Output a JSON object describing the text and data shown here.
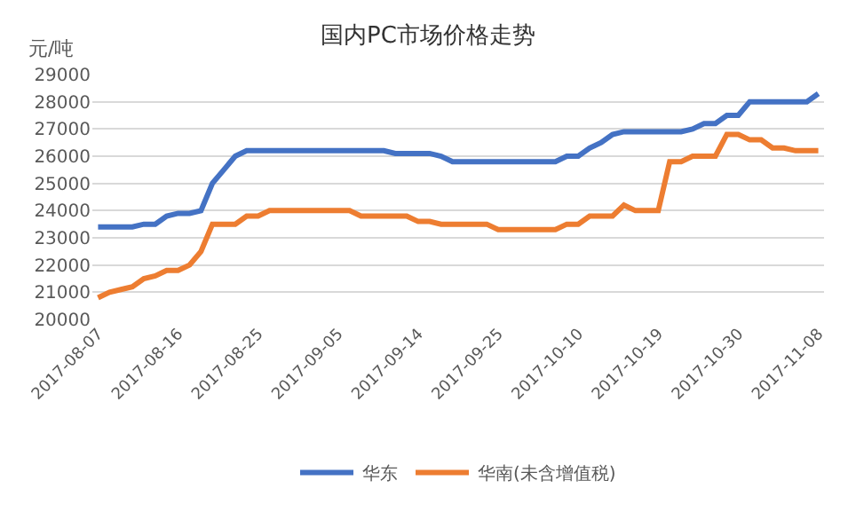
{
  "chart_data": {
    "type": "line",
    "title": "国内PC市场价格走势",
    "ylabel": "元/吨",
    "categories": [
      "2017-08-07",
      null,
      null,
      null,
      null,
      null,
      null,
      "2017-08-16",
      null,
      null,
      null,
      null,
      null,
      null,
      "2017-08-25",
      null,
      null,
      null,
      null,
      null,
      null,
      "2017-09-05",
      null,
      null,
      null,
      null,
      null,
      null,
      "2017-09-14",
      null,
      null,
      null,
      null,
      null,
      null,
      "2017-09-25",
      null,
      null,
      null,
      null,
      null,
      null,
      "2017-10-10",
      null,
      null,
      null,
      null,
      null,
      null,
      "2017-10-19",
      null,
      null,
      null,
      null,
      null,
      null,
      "2017-10-30",
      null,
      null,
      null,
      null,
      null,
      null,
      "2017-11-08"
    ],
    "series": [
      {
        "name": "华东",
        "color": "#4472c4",
        "values": [
          23400,
          23400,
          23400,
          23400,
          23500,
          23500,
          23800,
          23900,
          23900,
          24000,
          25000,
          25500,
          26000,
          26200,
          26200,
          26200,
          26200,
          26200,
          26200,
          26200,
          26200,
          26200,
          26200,
          26200,
          26200,
          26200,
          26100,
          26100,
          26100,
          26100,
          26000,
          25800,
          25800,
          25800,
          25800,
          25800,
          25800,
          25800,
          25800,
          25800,
          25800,
          26000,
          26000,
          26300,
          26500,
          26800,
          26900,
          26900,
          26900,
          26900,
          26900,
          26900,
          27000,
          27200,
          27200,
          27500,
          27500,
          28000,
          28000,
          28000,
          28000,
          28000,
          28000,
          28300
        ]
      },
      {
        "name": "华南(未含增值税)",
        "color": "#ed7d31",
        "values": [
          20800,
          21000,
          21100,
          21200,
          21500,
          21600,
          21800,
          21800,
          22000,
          22500,
          23500,
          23500,
          23500,
          23800,
          23800,
          24000,
          24000,
          24000,
          24000,
          24000,
          24000,
          24000,
          24000,
          23800,
          23800,
          23800,
          23800,
          23800,
          23600,
          23600,
          23500,
          23500,
          23500,
          23500,
          23500,
          23300,
          23300,
          23300,
          23300,
          23300,
          23300,
          23500,
          23500,
          23800,
          23800,
          23800,
          24200,
          24000,
          24000,
          24000,
          25800,
          25800,
          26000,
          26000,
          26000,
          26800,
          26800,
          26600,
          26600,
          26300,
          26300,
          26200,
          26200,
          26200
        ]
      }
    ],
    "ylim": [
      20000,
      29000
    ],
    "yticks": [
      20000,
      21000,
      22000,
      23000,
      24000,
      25000,
      26000,
      27000,
      28000,
      29000
    ],
    "grid": "y",
    "legend": "bottom",
    "marker": "none",
    "line_style": "solid"
  }
}
